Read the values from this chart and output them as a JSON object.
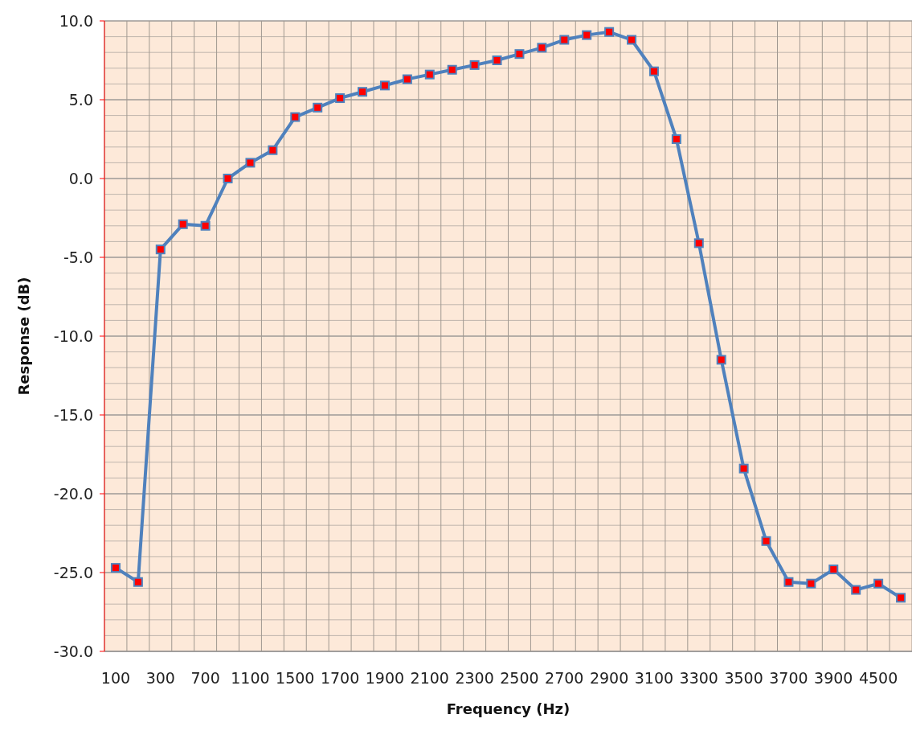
{
  "chart_data": {
    "type": "line",
    "xlabel": "Frequency (Hz)",
    "ylabel": "Response (dB)",
    "categories": [
      "100",
      null,
      "300",
      null,
      "700",
      null,
      "1100",
      null,
      "1500",
      null,
      "1700",
      null,
      "1900",
      null,
      "2100",
      null,
      "2300",
      null,
      "2500",
      null,
      "2700",
      null,
      "2900",
      null,
      "3100",
      null,
      "3300",
      null,
      "3500",
      null,
      "3700",
      null,
      "3900",
      null,
      "4500",
      null
    ],
    "series": [
      {
        "color": "#4f81bd",
        "values": [
          -24.7,
          -25.6,
          -4.5,
          -2.9,
          -3.0,
          0.0,
          1.0,
          1.8,
          3.9,
          4.5,
          5.1,
          5.5,
          5.9,
          6.3,
          6.6,
          6.9,
          7.2,
          7.5,
          7.9,
          8.3,
          8.8,
          9.1,
          9.3,
          8.8,
          6.8,
          2.5,
          -4.1,
          -11.5,
          -18.4,
          -23.0,
          -25.6,
          -25.7,
          -24.8,
          -26.1,
          -25.7,
          -26.6
        ]
      }
    ],
    "ylim": [
      -30,
      10
    ],
    "yticks": [
      {
        "value": -30,
        "label": "-30.0"
      },
      {
        "value": -25,
        "label": "-25.0"
      },
      {
        "value": -20,
        "label": "-20.0"
      },
      {
        "value": -15,
        "label": "-15.0"
      },
      {
        "value": -10,
        "label": "-10.0"
      },
      {
        "value": -5,
        "label": "-5.0"
      },
      {
        "value": 0,
        "label": "0.0"
      },
      {
        "value": 5,
        "label": "5.0"
      },
      {
        "value": 10,
        "label": "10.0"
      }
    ],
    "grid": true,
    "marker": "square",
    "line_style": "solid"
  }
}
